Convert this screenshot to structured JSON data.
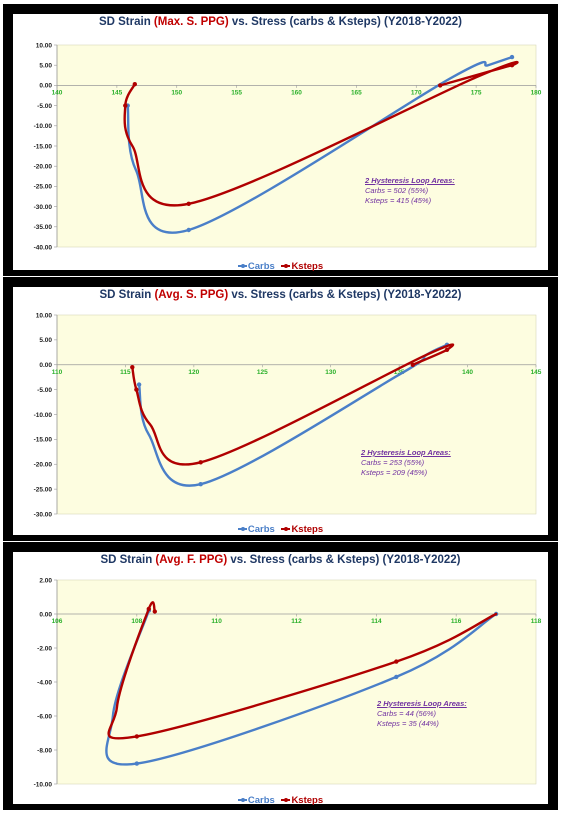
{
  "colors": {
    "carbs": "#4a7fc8",
    "ksteps": "#b00000",
    "plot_bg": "#fdfde0",
    "title": "#1f3864",
    "title_highlight": "#c00000",
    "axis_tick": "#2ab02a",
    "annotation": "#7030a0"
  },
  "chart_data": [
    {
      "type": "line",
      "title": {
        "pre": "SD Strain ",
        "highlight": "(Max. S. PPG)",
        "post": " vs. Stress (carbs & Ksteps)  (Y2018-Y2022)"
      },
      "xlim": [
        140,
        180
      ],
      "ylim": [
        -40,
        10
      ],
      "xticks": [
        "140",
        "145",
        "150",
        "155",
        "160",
        "165",
        "170",
        "175",
        "180"
      ],
      "yticks": [
        "10.00",
        "5.00",
        "0.00",
        "-5.00",
        "-10.00",
        "-15.00",
        "-20.00",
        "-25.00",
        "-30.00",
        "-35.00",
        "-40.00"
      ],
      "series": [
        {
          "name": "Carbs",
          "points": [
            [
              178.0,
              7.0
            ],
            [
              176.0,
              5.0
            ],
            [
              173.0,
              2.0
            ],
            [
              151.0,
              -35.8
            ],
            [
              146.6,
              -21.0
            ],
            [
              145.9,
              -5.0
            ]
          ],
          "marks": [
            [
              178.0,
              7.0
            ],
            [
              151.0,
              -35.8
            ],
            [
              145.9,
              -5.0
            ]
          ]
        },
        {
          "name": "Ksteps",
          "points": [
            [
              172.0,
              0.0
            ],
            [
              178.0,
              5.0
            ],
            [
              175.0,
              2.0
            ],
            [
              151.0,
              -29.3
            ],
            [
              146.3,
              -15.0
            ],
            [
              145.7,
              -5.0
            ],
            [
              146.5,
              0.3
            ]
          ],
          "marks": [
            [
              172.0,
              0.0
            ],
            [
              178.0,
              5.0
            ],
            [
              151.0,
              -29.3
            ],
            [
              145.7,
              -5.0
            ],
            [
              146.5,
              0.3
            ]
          ]
        }
      ],
      "annotation": {
        "heading": "2 Hysteresis Loop Areas:",
        "lines": [
          "Carbs = 502 (55%)",
          "Ksteps = 415 (45%)"
        ]
      },
      "legend": [
        "Carbs",
        "Ksteps"
      ]
    },
    {
      "type": "line",
      "title": {
        "pre": "SD Strain ",
        "highlight": "(Avg. S. PPG)",
        "post": " vs. Stress (carbs & Ksteps)  (Y2018-Y2022)"
      },
      "xlim": [
        110,
        145
      ],
      "ylim": [
        -30,
        10
      ],
      "xticks": [
        "110",
        "115",
        "120",
        "125",
        "130",
        "135",
        "140",
        "145"
      ],
      "yticks": [
        "10.00",
        "5.00",
        "0.00",
        "-5.00",
        "-10.00",
        "-15.00",
        "-20.00",
        "-25.00",
        "-30.00"
      ],
      "series": [
        {
          "name": "Carbs",
          "points": [
            [
              138.5,
              4.0
            ],
            [
              137.0,
              2.0
            ],
            [
              135.0,
              -2.0
            ],
            [
              120.5,
              -24.0
            ],
            [
              116.7,
              -14.0
            ],
            [
              116.0,
              -4.0
            ]
          ],
          "marks": [
            [
              138.5,
              4.0
            ],
            [
              120.5,
              -24.0
            ],
            [
              116.0,
              -4.0
            ]
          ]
        },
        {
          "name": "Ksteps",
          "points": [
            [
              136.0,
              0.0
            ],
            [
              138.5,
              3.0
            ],
            [
              137.0,
              2.0
            ],
            [
              120.5,
              -19.6
            ],
            [
              116.8,
              -12.0
            ],
            [
              115.8,
              -5.0
            ],
            [
              115.5,
              -0.5
            ]
          ],
          "marks": [
            [
              136.0,
              0.0
            ],
            [
              138.5,
              3.0
            ],
            [
              120.5,
              -19.6
            ],
            [
              115.8,
              -5.0
            ],
            [
              115.5,
              -0.5
            ]
          ]
        }
      ],
      "annotation": {
        "heading": "2 Hysteresis Loop Areas:",
        "lines": [
          "Carbs = 253 (55%)",
          "Ksteps = 209 (45%)"
        ]
      },
      "legend": [
        "Carbs",
        "Ksteps"
      ]
    },
    {
      "type": "line",
      "title": {
        "pre": "SD Strain ",
        "highlight": "(Avg. F. PPG)",
        "post": " vs. Stress (carbs & Ksteps)  (Y2018-Y2022)"
      },
      "xlim": [
        106,
        118
      ],
      "ylim": [
        -10,
        2
      ],
      "xticks": [
        "106",
        "108",
        "110",
        "112",
        "114",
        "116",
        "118"
      ],
      "yticks": [
        "2.00",
        "0.00",
        "-2.00",
        "-4.00",
        "-6.00",
        "-8.00",
        "-10.00"
      ],
      "series": [
        {
          "name": "Carbs",
          "points": [
            [
              117.0,
              0.0
            ],
            [
              114.5,
              -3.7
            ],
            [
              108.0,
              -8.8
            ],
            [
              107.4,
              -6.0
            ],
            [
              108.3,
              0.2
            ]
          ],
          "marks": [
            [
              117.0,
              0.0
            ],
            [
              114.5,
              -3.7
            ],
            [
              108.0,
              -8.8
            ],
            [
              108.3,
              0.2
            ]
          ]
        },
        {
          "name": "Ksteps",
          "points": [
            [
              117.0,
              0.0
            ],
            [
              114.5,
              -2.8
            ],
            [
              108.0,
              -7.2
            ],
            [
              107.5,
              -5.5
            ],
            [
              108.3,
              0.3
            ],
            [
              108.45,
              0.15
            ]
          ],
          "marks": [
            [
              114.5,
              -2.8
            ],
            [
              108.0,
              -7.2
            ],
            [
              108.3,
              0.3
            ],
            [
              108.45,
              0.15
            ]
          ]
        }
      ],
      "annotation": {
        "heading": "2 Hysteresis Loop Areas:",
        "lines": [
          "Carbs = 44 (56%)",
          "Ksteps = 35 (44%)"
        ]
      },
      "legend": [
        "Carbs",
        "Ksteps"
      ]
    }
  ]
}
